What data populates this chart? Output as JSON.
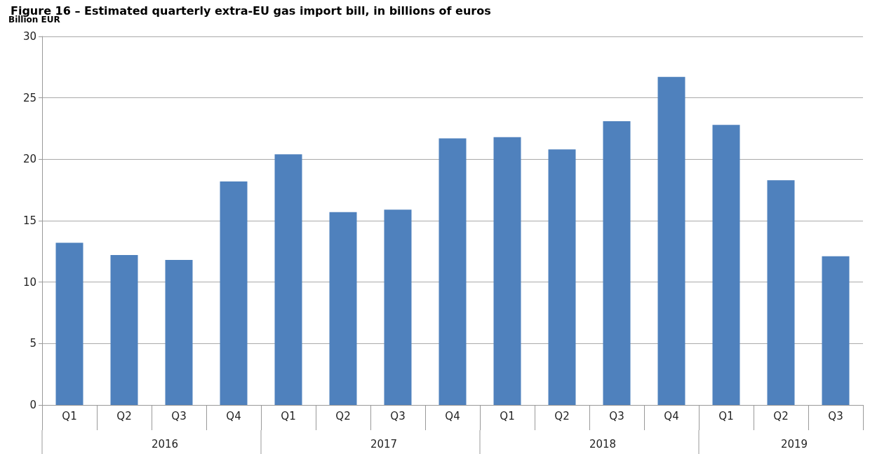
{
  "chart_data": {
    "type": "bar",
    "title": "Figure 16 – Estimated quarterly extra-EU gas import bill, in billions of euros",
    "ylabel": "Billion EUR",
    "categories": [
      "Q1",
      "Q2",
      "Q3",
      "Q4",
      "Q1",
      "Q2",
      "Q3",
      "Q4",
      "Q1",
      "Q2",
      "Q3",
      "Q4",
      "Q1",
      "Q2",
      "Q3"
    ],
    "values": [
      13.2,
      12.2,
      11.8,
      18.2,
      20.4,
      15.7,
      15.9,
      21.7,
      21.8,
      20.8,
      23.1,
      26.7,
      22.8,
      18.3,
      12.1
    ],
    "color": "#4f81bd",
    "ylim": [
      0,
      30
    ],
    "yticks": [
      0,
      5,
      10,
      15,
      20,
      25,
      30
    ],
    "grid": "y",
    "annotations": [
      "2016",
      "2017",
      "2018",
      "2019"
    ]
  }
}
